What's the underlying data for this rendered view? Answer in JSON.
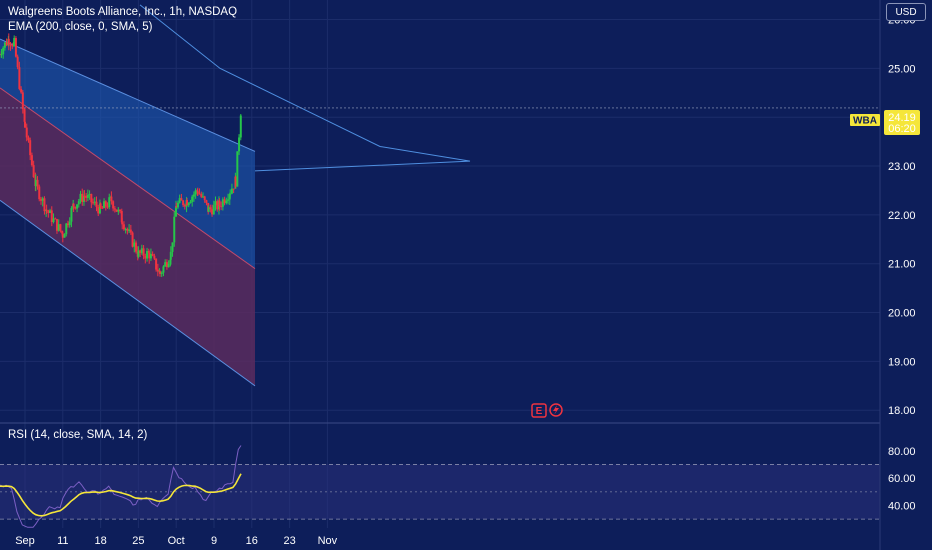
{
  "header": {
    "title": "Walgreens Boots Alliance, Inc., 1h, NASDAQ",
    "indicator": "EMA (200, close, 0, SMA, 5)"
  },
  "currency": "USD",
  "price_label": {
    "symbol": "WBA",
    "price": "24.19",
    "countdown": "06:20"
  },
  "rsi": {
    "label": "RSI (14, close, SMA, 14, 2)",
    "ticks": [
      "80.00",
      "60.00",
      "40.00"
    ],
    "level_values": [
      70,
      50,
      30
    ],
    "range": [
      22,
      88
    ]
  },
  "events": {
    "earnings_badge": "E",
    "dividend_icon": "lightning-icon"
  },
  "colors": {
    "background": "#0d1e5a",
    "up_candle": "#26c64a",
    "down_candle": "#ef3340",
    "upper_channel_fill": "#1e58b0",
    "lower_channel_fill": "#5a2c5e",
    "channel_line": "#5b8fe0",
    "ema_line": "#4f8fe0",
    "rsi_line": "#7b5fc4",
    "rsi_ma_line": "#f5e63a",
    "price_label_bg": "#f5e63a"
  },
  "chart_data": {
    "type": "candlestick",
    "title": "Walgreens Boots Alliance, Inc., 1h, NASDAQ",
    "x_tick_labels": [
      "Sep",
      "11",
      "18",
      "25",
      "Oct",
      "9",
      "16",
      "23",
      "Nov"
    ],
    "y_tick_labels": [
      "26.00",
      "25.00",
      "24.00",
      "23.00",
      "22.00",
      "21.00",
      "20.00",
      "19.00",
      "18.00"
    ],
    "ylim": [
      17.8,
      26.4
    ],
    "series": [
      {
        "name": "WBA",
        "approx_close_path": [
          {
            "date": "Aug 30",
            "close": 25.3
          },
          {
            "date": "Sep 1",
            "close": 25.6
          },
          {
            "date": "Sep 2",
            "close": 25.5
          },
          {
            "date": "Sep 4",
            "close": 23.8
          },
          {
            "date": "Sep 6",
            "close": 22.6
          },
          {
            "date": "Sep 8",
            "close": 22.1
          },
          {
            "date": "Sep 11",
            "close": 21.6
          },
          {
            "date": "Sep 13",
            "close": 22.2
          },
          {
            "date": "Sep 15",
            "close": 22.4
          },
          {
            "date": "Sep 18",
            "close": 22.1
          },
          {
            "date": "Sep 20",
            "close": 22.3
          },
          {
            "date": "Sep 22",
            "close": 21.9
          },
          {
            "date": "Sep 25",
            "close": 21.2
          },
          {
            "date": "Sep 27",
            "close": 21.2
          },
          {
            "date": "Sep 29",
            "close": 20.8
          },
          {
            "date": "Oct 1",
            "close": 21.2
          },
          {
            "date": "Oct 2",
            "close": 22.2
          },
          {
            "date": "Oct 4",
            "close": 22.3
          },
          {
            "date": "Oct 6",
            "close": 22.5
          },
          {
            "date": "Oct 8",
            "close": 22.1
          },
          {
            "date": "Oct 10",
            "close": 22.2
          },
          {
            "date": "Oct 12",
            "close": 22.5
          },
          {
            "date": "Oct 13",
            "close": 22.7
          },
          {
            "date": "Oct 14",
            "close": 24.19
          }
        ]
      },
      {
        "name": "EMA (200, close, 0, SMA, 5)",
        "approx_path": [
          26.3,
          25.0,
          24.2,
          23.4,
          23.1,
          22.9
        ]
      }
    ],
    "regression_channel": {
      "upper_line": {
        "start": 25.6,
        "end": 23.3
      },
      "mid_line": {
        "start": 24.6,
        "end": 20.9
      },
      "lower_line": {
        "start": 22.3,
        "end": 18.5
      }
    }
  }
}
